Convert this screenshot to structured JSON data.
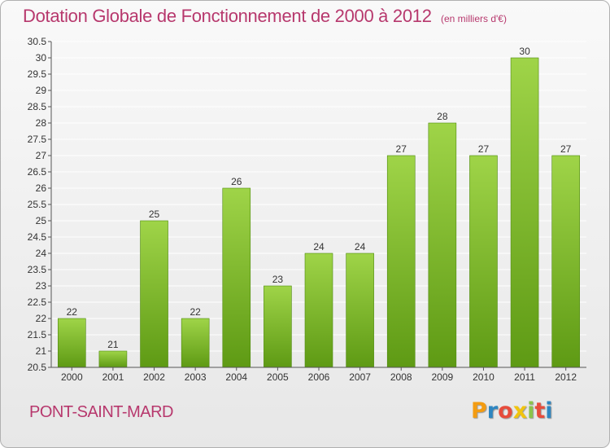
{
  "header": {
    "title": "Dotation Globale de Fonctionnement de 2000 à 2012",
    "subtitle": "(en milliers d'€)"
  },
  "footer": {
    "commune": "PONT-SAINT-MARD",
    "logo_letters": [
      "P",
      "r",
      "o",
      "x",
      "i",
      "t",
      "i"
    ],
    "logo_colors": [
      "#f39c12",
      "#2e86c1",
      "#e74c3c",
      "#f1c40f",
      "#8bc34a",
      "#e74c3c",
      "#2e86c1"
    ]
  },
  "chart_data": {
    "type": "bar",
    "categories": [
      "2000",
      "2001",
      "2002",
      "2003",
      "2004",
      "2005",
      "2006",
      "2007",
      "2008",
      "2009",
      "2010",
      "2011",
      "2012"
    ],
    "values": [
      22,
      21,
      25,
      22,
      26,
      23,
      24,
      24,
      27,
      28,
      27,
      30,
      27
    ],
    "data_labels": [
      "22",
      "21",
      "25",
      "22",
      "26",
      "23",
      "24",
      "24",
      "27",
      "28",
      "27",
      "30",
      "27"
    ],
    "title": "Dotation Globale de Fonctionnement de 2000 à 2012",
    "ylim": [
      20.5,
      30.5
    ],
    "yticks": [
      "20.5",
      "21",
      "21.5",
      "22",
      "22.5",
      "23",
      "23.5",
      "24",
      "24.5",
      "25",
      "25.5",
      "26",
      "26.5",
      "27",
      "27.5",
      "28",
      "28.5",
      "29",
      "29.5",
      "30",
      "30.5"
    ],
    "grid": true,
    "colors": {
      "bar_top": "#9fd448",
      "bar_bottom": "#5e9a14",
      "bar_stroke": "#4f8a0f",
      "grid": "#ffffff",
      "axis": "#555555"
    }
  }
}
